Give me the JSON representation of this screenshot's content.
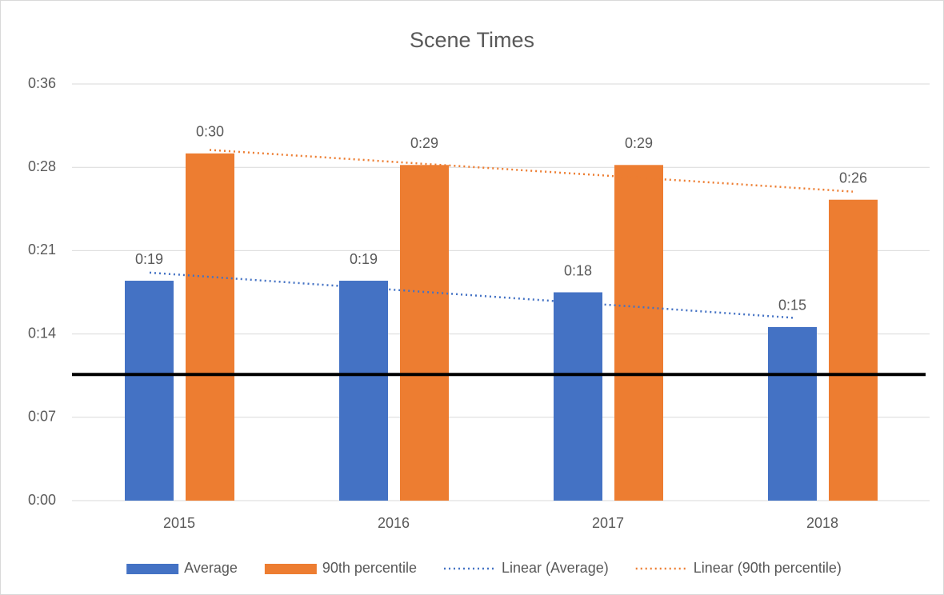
{
  "chart_data": {
    "type": "bar",
    "title": "Scene Times",
    "categories": [
      "2015",
      "2016",
      "2017",
      "2018"
    ],
    "series": [
      {
        "name": "Average",
        "color": "#4472c4",
        "values": [
          19,
          19,
          18,
          15
        ],
        "value_labels": [
          "0:19",
          "0:19",
          "0:18",
          "0:15"
        ]
      },
      {
        "name": "90th percentile",
        "color": "#ed7d31",
        "values": [
          30,
          29,
          29,
          26
        ],
        "value_labels": [
          "0:30",
          "0:29",
          "0:29",
          "0:26"
        ]
      }
    ],
    "trendlines": [
      {
        "name": "Linear (Average)",
        "color": "#4472c4",
        "values": [
          19.7,
          18.4,
          17.1,
          15.8
        ]
      },
      {
        "name": "Linear (90th percentile)",
        "color": "#ed7d31",
        "values": [
          30.3,
          29.1,
          27.9,
          26.7
        ]
      }
    ],
    "reference_line": {
      "value": 10.9,
      "color": "#000000"
    },
    "ylim": [
      0,
      36
    ],
    "yticks": [
      {
        "value": 0,
        "label": "0:00"
      },
      {
        "value": 7.2,
        "label": "0:07"
      },
      {
        "value": 14.4,
        "label": "0:14"
      },
      {
        "value": 21.6,
        "label": "0:21"
      },
      {
        "value": 28.8,
        "label": "0:28"
      },
      {
        "value": 36,
        "label": "0:36"
      }
    ],
    "grid": true,
    "legend": "bottom"
  }
}
